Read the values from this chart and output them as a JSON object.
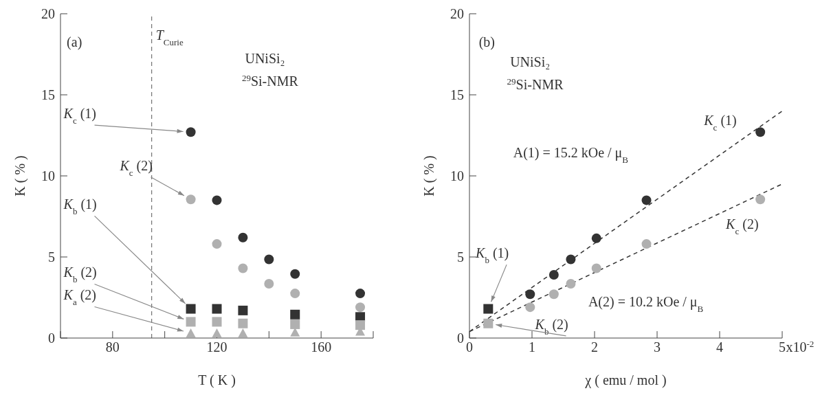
{
  "chart_data": [
    {
      "type": "scatter",
      "xlabel": "T ( K )",
      "ylabel": "K ( % )",
      "xlim": [
        60,
        180
      ],
      "ylim": [
        0,
        20
      ],
      "xticks": [
        {
          "value": 60,
          "label": null
        },
        80,
        {
          "value": 100,
          "label": null
        },
        120,
        {
          "value": 140,
          "label": null
        },
        160,
        {
          "value": 180,
          "label": null
        }
      ],
      "yticks": [
        0,
        5,
        10,
        15,
        20
      ],
      "ref_lines": [
        {
          "axis": "x",
          "value": 95,
          "label": "T$_{Curie}$",
          "color": "#555555",
          "line_style": "dashed"
        }
      ],
      "annotations": [
        "(a)",
        "UNiSi₂",
        "$^{29}$Si-NMR"
      ],
      "series": [
        {
          "name": "K$_{c}$ (1)",
          "color": "#333333",
          "marker": "circle",
          "x": [
            110,
            120,
            130,
            140,
            150,
            175
          ],
          "values": [
            12.7,
            8.5,
            6.2,
            4.85,
            3.95,
            2.75
          ]
        },
        {
          "name": "K$_{c}$ (2)",
          "color": "#b0b0b0",
          "marker": "circle",
          "x": [
            110,
            120,
            130,
            140,
            150,
            175
          ],
          "values": [
            8.55,
            5.8,
            4.3,
            3.35,
            2.75,
            1.9
          ]
        },
        {
          "name": "K$_{b}$ (1)",
          "color": "#333333",
          "marker": "square",
          "x": [
            110,
            120,
            130,
            150,
            175
          ],
          "values": [
            1.8,
            1.8,
            1.7,
            1.45,
            1.3
          ]
        },
        {
          "name": "K$_{b}$ (2)",
          "color": "#b0b0b0",
          "marker": "square",
          "x": [
            110,
            120,
            130,
            150,
            175
          ],
          "values": [
            1.0,
            1.0,
            0.9,
            0.85,
            0.8
          ]
        },
        {
          "name": "K$_{a}$ (2)",
          "color": "#b0b0b0",
          "marker": "triangle",
          "x": [
            110,
            120,
            130,
            150,
            175
          ],
          "values": [
            0.3,
            0.3,
            0.3,
            0.35,
            0.4
          ]
        }
      ]
    },
    {
      "type": "scatter",
      "xlabel": "χ ( emu / mol )",
      "ylabel": "K ( % )",
      "xlim": [
        0,
        5
      ],
      "ylim": [
        0,
        20
      ],
      "xticks": [
        0,
        1,
        2,
        3,
        4,
        5
      ],
      "yticks": [
        0,
        5,
        10,
        15,
        20
      ],
      "annotations": [
        "(b)",
        "UNiSi₂",
        "$^{29}$Si-NMR",
        "A(1) = 15.2 kOe / μ$_{B}$",
        "A(2) = 10.2 kOe / μ$_{B}$",
        "x10$^{-2}$"
      ],
      "series": [
        {
          "name": "K$_{c}$ (1)",
          "color": "#333333",
          "marker": "circle",
          "x": [
            0.97,
            1.35,
            1.62,
            2.03,
            2.83,
            4.65
          ],
          "values": [
            2.7,
            3.9,
            4.85,
            6.15,
            8.5,
            12.7
          ]
        },
        {
          "name": "K$_{c}$ (2)",
          "color": "#b0b0b0",
          "marker": "circle",
          "x": [
            0.97,
            1.35,
            1.62,
            2.03,
            2.83,
            4.65
          ],
          "values": [
            1.9,
            2.7,
            3.35,
            4.3,
            5.8,
            8.55
          ]
        },
        {
          "name": "K$_{b}$ (1)",
          "color": "#333333",
          "marker": "square",
          "x": [
            0.3
          ],
          "values": [
            1.8
          ]
        },
        {
          "name": "K$_{b}$ (2)",
          "color": "#b0b0b0",
          "marker": "square",
          "x": [
            0.3
          ],
          "values": [
            0.9
          ]
        },
        {
          "type": "line",
          "color": "#333333",
          "line_style": "dashed",
          "marker": "none",
          "x": [
            0,
            5
          ],
          "values": [
            0.4,
            14.0
          ]
        },
        {
          "type": "line",
          "color": "#333333",
          "line_style": "dashed",
          "marker": "none",
          "x": [
            0,
            5
          ],
          "values": [
            0.4,
            9.5
          ]
        }
      ]
    }
  ]
}
